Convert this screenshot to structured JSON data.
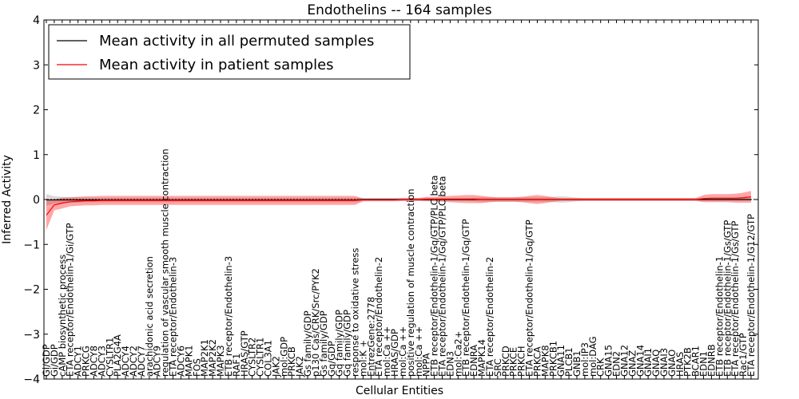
{
  "chart_data": {
    "type": "line",
    "title": "Endothelins -- 164 samples",
    "xlabel": "Cellular Entities",
    "ylabel": "Inferred Activity",
    "ylim": [
      -4,
      4
    ],
    "yticks": [
      "−4",
      "−3",
      "−2",
      "−1",
      "0",
      "1",
      "2",
      "3",
      "4"
    ],
    "legend": {
      "position": "top-left",
      "entries": [
        {
          "label": "Mean activity in all permuted samples",
          "color": "#000000"
        },
        {
          "label": "Mean activity in patient samples",
          "color": "#ff0000"
        }
      ]
    },
    "categories": [
      "Gi/GDP",
      "Gi/GDP",
      "cAMP biosynthetic process",
      "ETA receptor/Endothelin-1/Gi/GTP",
      "ADCY1",
      "PRKCG",
      "ADCY8",
      "ADCY3",
      "CYSLTR1",
      "PLA2G4A",
      "ADCY4",
      "ADCY2",
      "ADCY7",
      "arachidonic acid secretion",
      "ADCY9",
      "regulation of vascular smooth muscle contraction",
      "ETA receptor/Endothelin-3",
      "ADCY6",
      "MAPK1",
      "FOS",
      "MAP2K1",
      "MAP2K2",
      "MAPK3",
      "ETB receptor/Endothelin-3",
      "RAF1",
      "HRAS/GTP",
      "CYSLTR2",
      "CYSLTR1",
      "COL3A1",
      "JAK2",
      "mol:GDP",
      "PRKCB",
      "JAK2",
      "Gs family/GDP",
      "p130 Cas/CRK/Src/PYK2",
      "Gs family/GDP",
      "Gq/GDP",
      "Gq family/GDP",
      "Gq family/GDP",
      "response to oxidative stress",
      "mol:K +",
      "EntrezGene:2778",
      "ETA receptor/Endothelin-2",
      "mol:Ca ++",
      "HRAS/GDP",
      "mol:Ca ++",
      "positive regulation of muscle contraction",
      "mol:Ca ++",
      "NPPA",
      "ETB receptor/Endothelin-1/Gq/GTP/PLC beta",
      "ETA receptor/Endothelin-1/Gq/GTP/PLC beta",
      "EDN3",
      "mol:Ca2+",
      "ETB receptor/Endothelin-1/Gq/GTP",
      "EDNRA",
      "MAPK14",
      "ETA receptor/Endothelin-2",
      "SRC",
      "PRKCD",
      "PRKCE",
      "PRKCH",
      "ETA receptor/Endothelin-1/Gq/GTP",
      "PRKCA",
      "MAPK8",
      "PRKCB1",
      "GNA11",
      "PLCB1",
      "GNB1",
      "mol:IP3",
      "mol:DAG",
      "CRK",
      "GNA15",
      "EDN2",
      "GNA12",
      "GNAZ",
      "GNA14",
      "GNAI1",
      "GNAQ",
      "GNAI3",
      "GNAO",
      "HRAS",
      "PTK2B",
      "BCAR1",
      "EDN1",
      "EDNRB",
      "ETB receptor/Endothelin-1",
      "ETB receptor/Endothelin-1/Gs/GTP",
      "ETA receptor/Endothelin-1/Gs/GTP",
      "Rac1/GTP",
      "ETA receptor/Endothelin-1/G12/GTP"
    ],
    "series": [
      {
        "name": "Mean activity in patient samples",
        "color": "#ff0000",
        "x": [
          0,
          1,
          2,
          3,
          4,
          5,
          6,
          7,
          8,
          9,
          10,
          11,
          12,
          13,
          14,
          15,
          16,
          17,
          18,
          19,
          20,
          21,
          22,
          23,
          24,
          25,
          26,
          27,
          28,
          29,
          30,
          31,
          32,
          33,
          34,
          35,
          36,
          37,
          38,
          39,
          40,
          41,
          42,
          43,
          44,
          45,
          46,
          47,
          48,
          49,
          50,
          51,
          52,
          53,
          54,
          55,
          56,
          57,
          58,
          59,
          60,
          61,
          62,
          63,
          64,
          65,
          66,
          67,
          68,
          69,
          70,
          71,
          72,
          73,
          74,
          75,
          76,
          77,
          78,
          79,
          80,
          81,
          82,
          83,
          84,
          85,
          86,
          87,
          88,
          89
        ],
        "values": [
          -0.35,
          -0.12,
          -0.08,
          -0.05,
          -0.04,
          -0.03,
          -0.03,
          -0.02,
          -0.02,
          -0.02,
          -0.02,
          -0.02,
          -0.02,
          -0.02,
          -0.02,
          -0.02,
          -0.02,
          -0.02,
          -0.02,
          -0.02,
          -0.02,
          -0.02,
          -0.02,
          -0.02,
          -0.02,
          -0.02,
          -0.02,
          -0.02,
          -0.02,
          -0.02,
          -0.02,
          -0.02,
          -0.02,
          -0.02,
          -0.02,
          -0.02,
          -0.02,
          -0.02,
          -0.02,
          -0.02,
          -0.01,
          -0.01,
          -0.01,
          -0.01,
          -0.01,
          0.0,
          0.0,
          0.0,
          0.01,
          0.01,
          0.01,
          0.01,
          0.01,
          0.01,
          0.01,
          0.0,
          0.0,
          0.0,
          0.0,
          0.0,
          0.0,
          0.0,
          0.0,
          0.0,
          0.0,
          0.0,
          0.0,
          0.0,
          0.0,
          0.0,
          0.0,
          0.0,
          0.0,
          0.0,
          0.0,
          0.0,
          0.0,
          0.0,
          0.0,
          0.0,
          0.0,
          0.0,
          0.0,
          0.02,
          0.03,
          0.03,
          0.03,
          0.03,
          0.04,
          0.06
        ],
        "band": [
          0.33,
          0.12,
          0.12,
          0.1,
          0.1,
          0.1,
          0.1,
          0.1,
          0.1,
          0.1,
          0.1,
          0.1,
          0.1,
          0.1,
          0.1,
          0.1,
          0.1,
          0.1,
          0.1,
          0.1,
          0.1,
          0.1,
          0.1,
          0.1,
          0.1,
          0.1,
          0.1,
          0.1,
          0.1,
          0.1,
          0.1,
          0.1,
          0.1,
          0.1,
          0.1,
          0.1,
          0.1,
          0.1,
          0.1,
          0.1,
          0.03,
          0.03,
          0.03,
          0.03,
          0.03,
          0.03,
          0.03,
          0.03,
          0.05,
          0.05,
          0.06,
          0.07,
          0.08,
          0.09,
          0.09,
          0.08,
          0.06,
          0.05,
          0.05,
          0.05,
          0.06,
          0.08,
          0.1,
          0.08,
          0.05,
          0.03,
          0.03,
          0.03,
          0.03,
          0.03,
          0.03,
          0.03,
          0.03,
          0.03,
          0.03,
          0.03,
          0.03,
          0.03,
          0.03,
          0.03,
          0.03,
          0.03,
          0.03,
          0.08,
          0.09,
          0.09,
          0.09,
          0.1,
          0.11,
          0.13
        ]
      },
      {
        "name": "Mean activity in all permuted samples",
        "color": "#000000",
        "x": [
          0,
          1,
          2,
          3,
          4,
          5,
          6,
          7,
          8,
          9,
          10,
          11,
          12,
          13,
          14,
          15,
          16,
          17,
          18,
          19,
          20,
          21,
          22,
          23,
          24,
          25,
          26,
          27,
          28,
          29,
          30,
          31,
          32,
          33,
          34,
          35,
          36,
          37,
          38,
          39,
          40,
          41,
          42,
          43,
          44,
          45,
          46,
          47,
          48,
          49,
          50,
          51,
          52,
          53,
          54,
          55,
          56,
          57,
          58,
          59,
          60,
          61,
          62,
          63,
          64,
          65,
          66,
          67,
          68,
          69,
          70,
          71,
          72,
          73,
          74,
          75,
          76,
          77,
          78,
          79,
          80,
          81,
          82,
          83,
          84,
          85,
          86,
          87,
          88,
          89
        ],
        "values": [
          -0.01,
          -0.01,
          -0.01,
          -0.01,
          -0.01,
          -0.01,
          -0.01,
          -0.01,
          -0.01,
          -0.01,
          -0.01,
          -0.01,
          -0.01,
          -0.01,
          -0.01,
          -0.01,
          -0.01,
          -0.01,
          -0.01,
          -0.01,
          -0.01,
          -0.01,
          -0.01,
          -0.01,
          -0.01,
          -0.01,
          -0.01,
          -0.01,
          -0.01,
          -0.01,
          -0.01,
          -0.01,
          -0.01,
          -0.01,
          -0.01,
          -0.01,
          -0.01,
          -0.01,
          -0.01,
          -0.01,
          0.0,
          0.0,
          0.0,
          0.0,
          0.0,
          0.0,
          0.0,
          0.0,
          0.0,
          0.0,
          0.0,
          0.0,
          0.0,
          0.0,
          0.0,
          0.0,
          0.0,
          0.0,
          0.0,
          0.0,
          0.0,
          0.0,
          0.0,
          0.0,
          0.0,
          0.0,
          0.0,
          0.0,
          0.0,
          0.0,
          0.0,
          0.0,
          0.0,
          0.0,
          0.0,
          0.0,
          0.0,
          0.0,
          0.0,
          0.0,
          0.0,
          0.0,
          0.0,
          0.0,
          0.0,
          0.0,
          0.0,
          0.0,
          0.0,
          0.0
        ],
        "band": [
          0.13,
          0.08,
          0.07,
          0.06,
          0.06,
          0.05,
          0.05,
          0.05,
          0.05,
          0.05,
          0.05,
          0.05,
          0.05,
          0.05,
          0.05,
          0.05,
          0.05,
          0.05,
          0.05,
          0.05,
          0.05,
          0.05,
          0.05,
          0.05,
          0.05,
          0.05,
          0.05,
          0.05,
          0.05,
          0.05,
          0.05,
          0.05,
          0.05,
          0.05,
          0.05,
          0.05,
          0.05,
          0.05,
          0.05,
          0.05,
          0.03,
          0.03,
          0.03,
          0.03,
          0.03,
          0.03,
          0.03,
          0.03,
          0.03,
          0.03,
          0.03,
          0.03,
          0.03,
          0.03,
          0.04,
          0.05,
          0.05,
          0.05,
          0.05,
          0.05,
          0.05,
          0.05,
          0.05,
          0.05,
          0.06,
          0.07,
          0.06,
          0.04,
          0.03,
          0.03,
          0.03,
          0.03,
          0.03,
          0.03,
          0.03,
          0.03,
          0.03,
          0.03,
          0.03,
          0.03,
          0.03,
          0.03,
          0.03,
          0.03,
          0.03,
          0.03,
          0.03,
          0.03,
          0.03,
          0.03
        ]
      }
    ]
  }
}
